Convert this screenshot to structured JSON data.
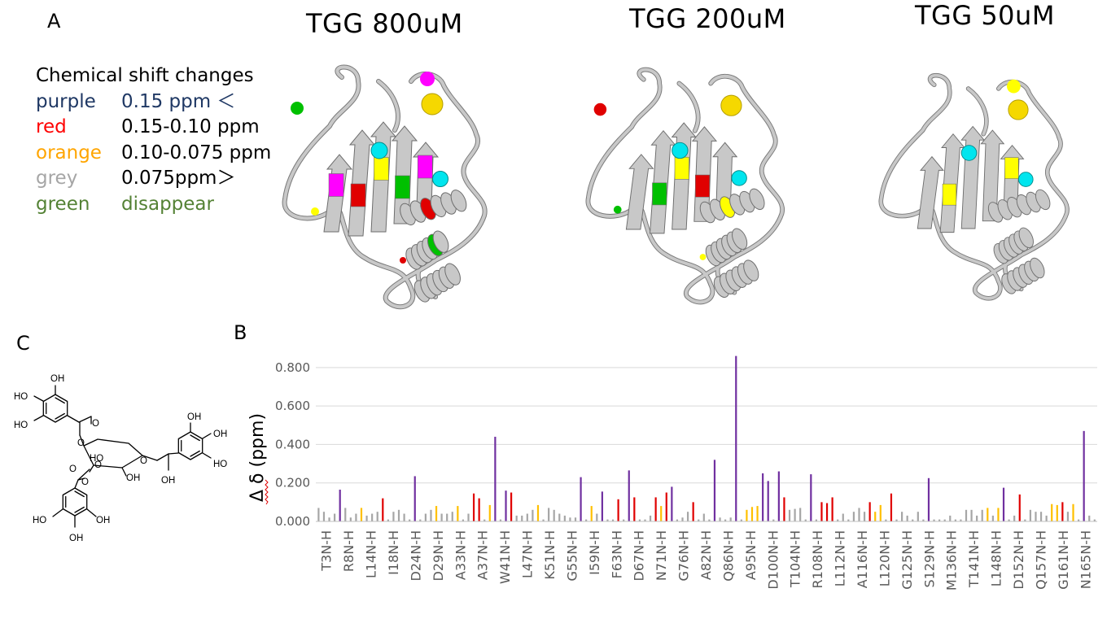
{
  "panels": {
    "a": "A",
    "b": "B",
    "c": "C"
  },
  "structures": [
    {
      "title": "TGG 800uM"
    },
    {
      "title": "TGG 200uM"
    },
    {
      "title": "TGG 50uM"
    }
  ],
  "legend": {
    "title": "Chemical shift changes",
    "items": [
      {
        "name": "purple",
        "range": "0.15 ppm ＜",
        "color": "#1f3864",
        "range_color": "#1f3864"
      },
      {
        "name": "red",
        "range": "0.15-0.10 ppm",
        "color": "#ff0000",
        "range_color": "#000000"
      },
      {
        "name": "orange",
        "range": "0.10-0.075 ppm",
        "color": "#ffa500",
        "range_color": "#000000"
      },
      {
        "name": "grey",
        "range": "0.075ppm＞",
        "color": "#a6a6a6",
        "range_color": "#000000"
      },
      {
        "name": "green",
        "range": "disappear",
        "color": "#548235",
        "range_color": "#548235"
      }
    ]
  },
  "colors": {
    "purple": "#7030a0",
    "red": "#e00000",
    "orange": "#ffc000",
    "grey": "#a6a6a6",
    "ribbon": "#c8c8c8",
    "magenta": "#ff00ff",
    "green": "#00c000",
    "yellow": "#ffff00",
    "cyan": "#00e5ee",
    "gridline": "#d9d9d9"
  },
  "molecule": {
    "labels": [
      "OH",
      "HO",
      "HO",
      "O",
      "O",
      "HO",
      "O",
      "OH",
      "O",
      "OH",
      "OH",
      "HO",
      "OH",
      "O",
      "O",
      "HO",
      "OH",
      "OH"
    ]
  },
  "chart_data": {
    "type": "bar",
    "ylabel": "Δ δ (ppm)",
    "ylim": [
      0,
      0.85
    ],
    "yticks": [
      "0.000",
      "0.200",
      "0.400",
      "0.600",
      "0.800"
    ],
    "ytick_values": [
      0,
      0.2,
      0.4,
      0.6,
      0.8
    ],
    "grid": true,
    "categories": [
      "T3N-H",
      "R8N-H",
      "L14N-H",
      "I18N-H",
      "D24N-H",
      "D29N-H",
      "A33N-H",
      "A37N-H",
      "W41N-H",
      "L47N-H",
      "K51N-H",
      "G55N-H",
      "I59N-H",
      "F63N-H",
      "D67N-H",
      "N71N-H",
      "G76N-H",
      "A82N-H",
      "Q86N-H",
      "A95N-H",
      "D100N-H",
      "T104N-H",
      "R108N-H",
      "L112N-H",
      "A116N-H",
      "L120N-H",
      "G125N-H",
      "S129N-H",
      "M136N-H",
      "T141N-H",
      "L148N-H",
      "D152N-H",
      "Q157N-H",
      "G161N-H",
      "N165N-H"
    ],
    "bars": [
      {
        "v": 0.07,
        "c": "grey"
      },
      {
        "v": 0.05,
        "c": "grey"
      },
      {
        "v": 0.02,
        "c": "grey"
      },
      {
        "v": 0.04,
        "c": "grey"
      },
      {
        "v": 0.165,
        "c": "purple"
      },
      {
        "v": 0.07,
        "c": "grey"
      },
      {
        "v": 0.02,
        "c": "grey"
      },
      {
        "v": 0.04,
        "c": "grey"
      },
      {
        "v": 0.07,
        "c": "orange"
      },
      {
        "v": 0.03,
        "c": "grey"
      },
      {
        "v": 0.04,
        "c": "grey"
      },
      {
        "v": 0.05,
        "c": "grey"
      },
      {
        "v": 0.12,
        "c": "red"
      },
      {
        "v": 0.01,
        "c": "grey"
      },
      {
        "v": 0.05,
        "c": "grey"
      },
      {
        "v": 0.06,
        "c": "grey"
      },
      {
        "v": 0.04,
        "c": "grey"
      },
      {
        "v": 0.01,
        "c": "grey"
      },
      {
        "v": 0.235,
        "c": "purple"
      },
      {
        "v": 0.01,
        "c": "grey"
      },
      {
        "v": 0.04,
        "c": "grey"
      },
      {
        "v": 0.06,
        "c": "grey"
      },
      {
        "v": 0.08,
        "c": "orange"
      },
      {
        "v": 0.04,
        "c": "grey"
      },
      {
        "v": 0.04,
        "c": "grey"
      },
      {
        "v": 0.05,
        "c": "grey"
      },
      {
        "v": 0.08,
        "c": "orange"
      },
      {
        "v": 0.01,
        "c": "grey"
      },
      {
        "v": 0.04,
        "c": "grey"
      },
      {
        "v": 0.145,
        "c": "red"
      },
      {
        "v": 0.12,
        "c": "red"
      },
      {
        "v": 0.01,
        "c": "grey"
      },
      {
        "v": 0.085,
        "c": "orange"
      },
      {
        "v": 0.44,
        "c": "purple"
      },
      {
        "v": 0.01,
        "c": "grey"
      },
      {
        "v": 0.16,
        "c": "purple"
      },
      {
        "v": 0.15,
        "c": "red"
      },
      {
        "v": 0.03,
        "c": "grey"
      },
      {
        "v": 0.03,
        "c": "grey"
      },
      {
        "v": 0.04,
        "c": "grey"
      },
      {
        "v": 0.06,
        "c": "grey"
      },
      {
        "v": 0.085,
        "c": "orange"
      },
      {
        "v": 0.01,
        "c": "grey"
      },
      {
        "v": 0.07,
        "c": "grey"
      },
      {
        "v": 0.06,
        "c": "grey"
      },
      {
        "v": 0.04,
        "c": "grey"
      },
      {
        "v": 0.03,
        "c": "grey"
      },
      {
        "v": 0.02,
        "c": "grey"
      },
      {
        "v": 0.02,
        "c": "grey"
      },
      {
        "v": 0.23,
        "c": "purple"
      },
      {
        "v": 0.01,
        "c": "grey"
      },
      {
        "v": 0.08,
        "c": "orange"
      },
      {
        "v": 0.04,
        "c": "grey"
      },
      {
        "v": 0.155,
        "c": "purple"
      },
      {
        "v": 0.01,
        "c": "grey"
      },
      {
        "v": 0.01,
        "c": "grey"
      },
      {
        "v": 0.115,
        "c": "red"
      },
      {
        "v": 0.01,
        "c": "grey"
      },
      {
        "v": 0.265,
        "c": "purple"
      },
      {
        "v": 0.125,
        "c": "red"
      },
      {
        "v": 0.01,
        "c": "grey"
      },
      {
        "v": 0.01,
        "c": "grey"
      },
      {
        "v": 0.03,
        "c": "grey"
      },
      {
        "v": 0.125,
        "c": "red"
      },
      {
        "v": 0.08,
        "c": "orange"
      },
      {
        "v": 0.15,
        "c": "red"
      },
      {
        "v": 0.18,
        "c": "purple"
      },
      {
        "v": 0.01,
        "c": "grey"
      },
      {
        "v": 0.02,
        "c": "grey"
      },
      {
        "v": 0.05,
        "c": "grey"
      },
      {
        "v": 0.1,
        "c": "red"
      },
      {
        "v": 0.01,
        "c": "grey"
      },
      {
        "v": 0.04,
        "c": "grey"
      },
      {
        "v": 0.01,
        "c": "grey"
      },
      {
        "v": 0.32,
        "c": "purple"
      },
      {
        "v": 0.02,
        "c": "grey"
      },
      {
        "v": 0.01,
        "c": "grey"
      },
      {
        "v": 0.02,
        "c": "grey"
      },
      {
        "v": 0.86,
        "c": "purple"
      },
      {
        "v": 0.01,
        "c": "grey"
      },
      {
        "v": 0.06,
        "c": "orange"
      },
      {
        "v": 0.075,
        "c": "orange"
      },
      {
        "v": 0.08,
        "c": "orange"
      },
      {
        "v": 0.25,
        "c": "purple"
      },
      {
        "v": 0.21,
        "c": "purple"
      },
      {
        "v": 0.01,
        "c": "grey"
      },
      {
        "v": 0.26,
        "c": "purple"
      },
      {
        "v": 0.125,
        "c": "red"
      },
      {
        "v": 0.06,
        "c": "grey"
      },
      {
        "v": 0.065,
        "c": "grey"
      },
      {
        "v": 0.07,
        "c": "grey"
      },
      {
        "v": 0.01,
        "c": "grey"
      },
      {
        "v": 0.245,
        "c": "purple"
      },
      {
        "v": 0.01,
        "c": "grey"
      },
      {
        "v": 0.1,
        "c": "red"
      },
      {
        "v": 0.095,
        "c": "red"
      },
      {
        "v": 0.125,
        "c": "red"
      },
      {
        "v": 0.01,
        "c": "grey"
      },
      {
        "v": 0.04,
        "c": "grey"
      },
      {
        "v": 0.01,
        "c": "grey"
      },
      {
        "v": 0.05,
        "c": "grey"
      },
      {
        "v": 0.07,
        "c": "grey"
      },
      {
        "v": 0.05,
        "c": "grey"
      },
      {
        "v": 0.1,
        "c": "red"
      },
      {
        "v": 0.05,
        "c": "orange"
      },
      {
        "v": 0.085,
        "c": "orange"
      },
      {
        "v": 0.01,
        "c": "grey"
      },
      {
        "v": 0.145,
        "c": "red"
      },
      {
        "v": 0.01,
        "c": "grey"
      },
      {
        "v": 0.05,
        "c": "grey"
      },
      {
        "v": 0.03,
        "c": "grey"
      },
      {
        "v": 0.01,
        "c": "grey"
      },
      {
        "v": 0.05,
        "c": "grey"
      },
      {
        "v": 0.01,
        "c": "grey"
      },
      {
        "v": 0.225,
        "c": "purple"
      },
      {
        "v": 0.01,
        "c": "grey"
      },
      {
        "v": 0.01,
        "c": "grey"
      },
      {
        "v": 0.01,
        "c": "grey"
      },
      {
        "v": 0.03,
        "c": "grey"
      },
      {
        "v": 0.01,
        "c": "grey"
      },
      {
        "v": 0.01,
        "c": "grey"
      },
      {
        "v": 0.06,
        "c": "grey"
      },
      {
        "v": 0.06,
        "c": "grey"
      },
      {
        "v": 0.03,
        "c": "grey"
      },
      {
        "v": 0.06,
        "c": "grey"
      },
      {
        "v": 0.07,
        "c": "orange"
      },
      {
        "v": 0.03,
        "c": "grey"
      },
      {
        "v": 0.07,
        "c": "orange"
      },
      {
        "v": 0.175,
        "c": "purple"
      },
      {
        "v": 0.01,
        "c": "grey"
      },
      {
        "v": 0.03,
        "c": "grey"
      },
      {
        "v": 0.14,
        "c": "red"
      },
      {
        "v": 0.01,
        "c": "grey"
      },
      {
        "v": 0.06,
        "c": "grey"
      },
      {
        "v": 0.05,
        "c": "grey"
      },
      {
        "v": 0.05,
        "c": "grey"
      },
      {
        "v": 0.03,
        "c": "grey"
      },
      {
        "v": 0.09,
        "c": "orange"
      },
      {
        "v": 0.085,
        "c": "orange"
      },
      {
        "v": 0.1,
        "c": "red"
      },
      {
        "v": 0.05,
        "c": "grey"
      },
      {
        "v": 0.09,
        "c": "orange"
      },
      {
        "v": 0.01,
        "c": "grey"
      },
      {
        "v": 0.47,
        "c": "purple"
      },
      {
        "v": 0.03,
        "c": "grey"
      },
      {
        "v": 0.01,
        "c": "grey"
      }
    ]
  }
}
